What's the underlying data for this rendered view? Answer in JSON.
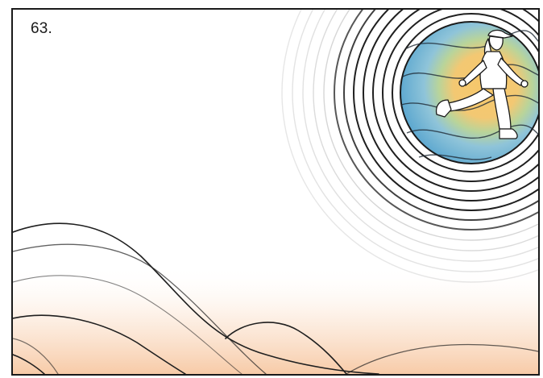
{
  "page": {
    "number_label": "63."
  },
  "illustration": {
    "subject_icon": "running-person-icon",
    "colors": {
      "outline": "#1a1a1a",
      "sun_blue": "#6fb6d8",
      "sun_yellow": "#f3c06a",
      "sun_green": "#a7c98a",
      "horizon_peach": "#f8d3b5",
      "ring_gray": "#b9b9b9"
    }
  }
}
